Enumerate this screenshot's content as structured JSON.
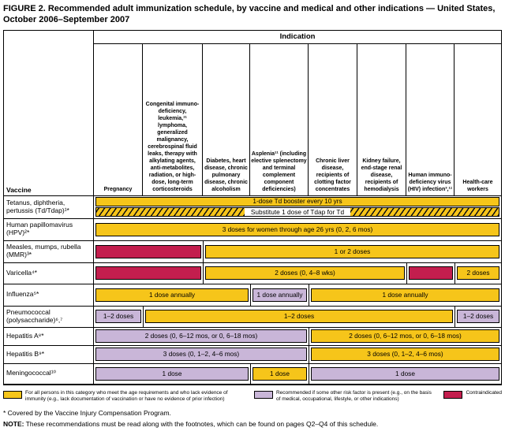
{
  "title": "FIGURE 2. Recommended adult immunization schedule, by vaccine and medical and other indications — United States, October 2006–September 2007",
  "colors": {
    "yellow": "#F6C51A",
    "purple": "#C9B6D8",
    "red": "#C31E4E"
  },
  "table": {
    "corner_label": "Vaccine",
    "indication_label": "Indication",
    "columns": [
      {
        "label": "Pregnancy"
      },
      {
        "label": "Congenital immuno-deficiency, leukemia,¹¹ lymphoma, generalized malignancy, cerebrospinal fluid leaks, therapy with alkylating agents, anti-metabolites, radiation, or high-dose, long-term corticosteroids"
      },
      {
        "label": "Diabetes, heart disease, chronic pulmonary disease, chronic alcoholism"
      },
      {
        "label": "Asplenia¹¹ (including elective splenectomy and terminal complement component deficiencies)"
      },
      {
        "label": "Chronic liver disease, recipients of clotting factor concentrates"
      },
      {
        "label": "Kidney failure, end-stage renal disease, recipients of hemodialysis"
      },
      {
        "label": "Human immuno-deficiency virus (HIV) infection³,¹¹"
      },
      {
        "label": "Health-care workers"
      }
    ],
    "rows": [
      {
        "vaccine": "Tetanus, diphtheria, pertussis (Td/Tdap)¹*",
        "bars": [
          {
            "label": "1-dose Td booster every 10 yrs"
          },
          {
            "label": "Substitute 1 dose of Tdap for Td"
          }
        ]
      },
      {
        "vaccine": "Human papillomavirus (HPV)²*",
        "bars": [
          {
            "label": "3 doses for women through age 26 yrs (0, 2, 6 mos)"
          }
        ]
      },
      {
        "vaccine": "Measles, mumps, rubella (MMR)³*",
        "bars": [
          {
            "label": ""
          },
          {
            "label": "1 or 2 doses"
          }
        ]
      },
      {
        "vaccine": "Varicella⁴*",
        "bars": [
          {
            "label": ""
          },
          {
            "label": "2 doses (0, 4–8 wks)"
          },
          {
            "label": ""
          },
          {
            "label": "2 doses"
          }
        ]
      },
      {
        "vaccine": "Influenza⁵*",
        "bars": [
          {
            "label": "1 dose annually"
          },
          {
            "label": "1 dose annually"
          },
          {
            "label": "1 dose annually"
          }
        ]
      },
      {
        "vaccine": "Pneumococcal (polysaccharide)⁶,⁷",
        "bars": [
          {
            "label": "1–2 doses"
          },
          {
            "label": "1–2 doses"
          },
          {
            "label": "1–2 doses"
          }
        ]
      },
      {
        "vaccine": "Hepatitis A⁸*",
        "bars": [
          {
            "label": "2 doses (0, 6–12 mos, or 0, 6–18 mos)"
          },
          {
            "label": "2 doses (0, 6–12 mos, or 0, 6–18 mos)"
          }
        ]
      },
      {
        "vaccine": "Hepatitis B⁹*",
        "bars": [
          {
            "label": "3 doses (0, 1–2, 4–6 mos)"
          },
          {
            "label": "3 doses (0, 1–2, 4–6 mos)"
          }
        ]
      },
      {
        "vaccine": "Meningococcal¹⁰",
        "bars": [
          {
            "label": "1 dose"
          },
          {
            "label": "1 dose"
          },
          {
            "label": "1 dose"
          }
        ]
      }
    ]
  },
  "legend": [
    {
      "text": "For all persons in this category who meet the age requirements and who lack evidence of immunity (e.g., lack documentation of vaccination or have no evidence of prior infection)"
    },
    {
      "text": "Recommended if some other risk factor is present (e.g., on the basis of medical, occupational, lifestyle, or other indications)"
    },
    {
      "text": "Contraindicated"
    }
  ],
  "footnotes": {
    "star": "* Covered by the Vaccine Injury Compensation Program.",
    "note_label": "NOTE:",
    "note_text": " These recommendations must be read along with the footnotes, which can be found on pages Q2–Q4 of this schedule."
  }
}
